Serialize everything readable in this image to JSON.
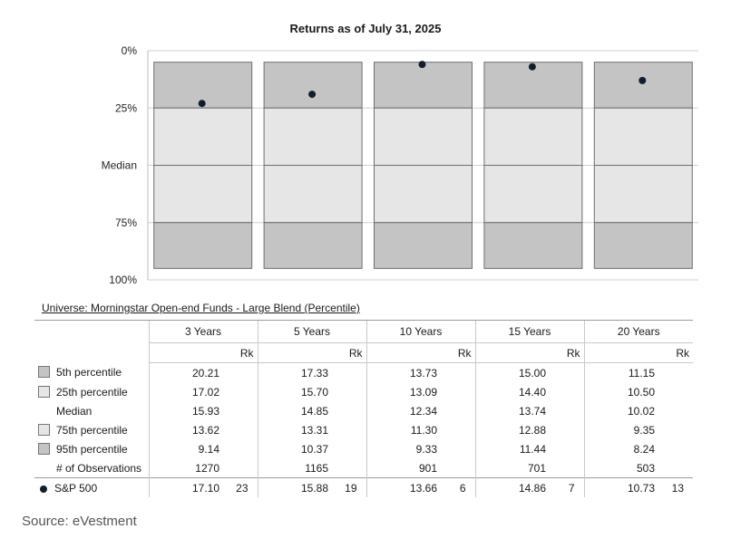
{
  "chart_data": {
    "type": "floating-bar",
    "title": "Returns as of July 31, 2025",
    "y_tick_labels": [
      "0%",
      "25%",
      "Median",
      "75%",
      "100%"
    ],
    "y_tick_values": [
      0,
      25,
      50,
      75,
      100
    ],
    "ylim": [
      0,
      100
    ],
    "y_inverted": true,
    "categories": [
      "3 Years",
      "5 Years",
      "10 Years",
      "15 Years",
      "20 Years"
    ],
    "band_bounds": [
      5,
      25,
      50,
      75,
      95
    ],
    "index_percentile_rank": [
      23,
      19,
      6,
      7,
      13
    ],
    "grid": true,
    "colors": {
      "outer_band": "#c4c4c4",
      "inner_band": "#e6e6e6",
      "marker": "#111e2e"
    }
  },
  "universe_label": "Universe: Morningstar Open-end Funds - Large Blend (Percentile)",
  "table": {
    "periods": [
      "3 Years",
      "5 Years",
      "10 Years",
      "15 Years",
      "20 Years"
    ],
    "rk_label": "Rk",
    "rows": [
      {
        "label": "5th percentile",
        "swatch": "dark",
        "values": [
          "20.21",
          "17.33",
          "13.73",
          "15.00",
          "11.15"
        ]
      },
      {
        "label": "25th percentile",
        "swatch": "light",
        "values": [
          "17.02",
          "15.70",
          "13.09",
          "14.40",
          "10.50"
        ]
      },
      {
        "label": "Median",
        "swatch": "none",
        "values": [
          "15.93",
          "14.85",
          "12.34",
          "13.74",
          "10.02"
        ]
      },
      {
        "label": "75th percentile",
        "swatch": "light",
        "values": [
          "13.62",
          "13.31",
          "11.30",
          "12.88",
          "9.35"
        ]
      },
      {
        "label": "95th percentile",
        "swatch": "dark",
        "values": [
          "9.14",
          "10.37",
          "9.33",
          "11.44",
          "8.24"
        ]
      },
      {
        "label": "# of Observations",
        "swatch": "none",
        "values": [
          "1270",
          "1165",
          "901",
          "701",
          "503"
        ]
      }
    ],
    "index_row": {
      "label": "S&P 500",
      "values": [
        "17.10",
        "15.88",
        "13.66",
        "14.86",
        "10.73"
      ],
      "ranks": [
        "23",
        "19",
        "6",
        "7",
        "13"
      ]
    }
  },
  "source": "Source: eVestment"
}
